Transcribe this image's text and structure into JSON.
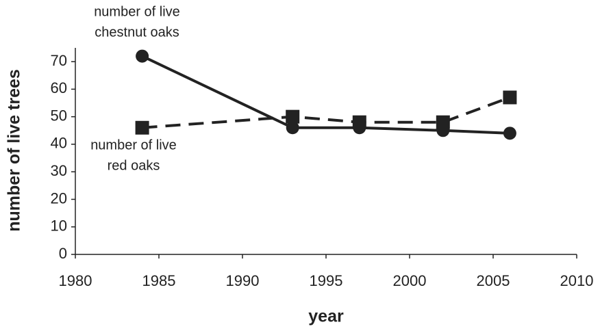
{
  "chart_data": {
    "type": "line",
    "x_label": "year",
    "y_label": "number of live trees",
    "xlim": [
      1980,
      2010
    ],
    "xticks": [
      1980,
      1985,
      1990,
      1995,
      2000,
      2005,
      2010
    ],
    "ylim": [
      0,
      75
    ],
    "yticks": [
      0,
      10,
      20,
      30,
      40,
      50,
      60,
      70
    ],
    "grid": false,
    "series": [
      {
        "label": [
          "number of live",
          "chestnut oaks"
        ],
        "color": "#222222",
        "marker": "circle",
        "dashed": false,
        "x": [
          1984,
          1993,
          1997,
          2002,
          2006
        ],
        "values": [
          72,
          46,
          46,
          45,
          44
        ]
      },
      {
        "label": [
          "number of live",
          "red oaks"
        ],
        "color": "#222222",
        "marker": "square",
        "dashed": true,
        "x": [
          1984,
          1993,
          1997,
          2002,
          2006
        ],
        "values": [
          46,
          50,
          48,
          48,
          57
        ]
      }
    ]
  }
}
